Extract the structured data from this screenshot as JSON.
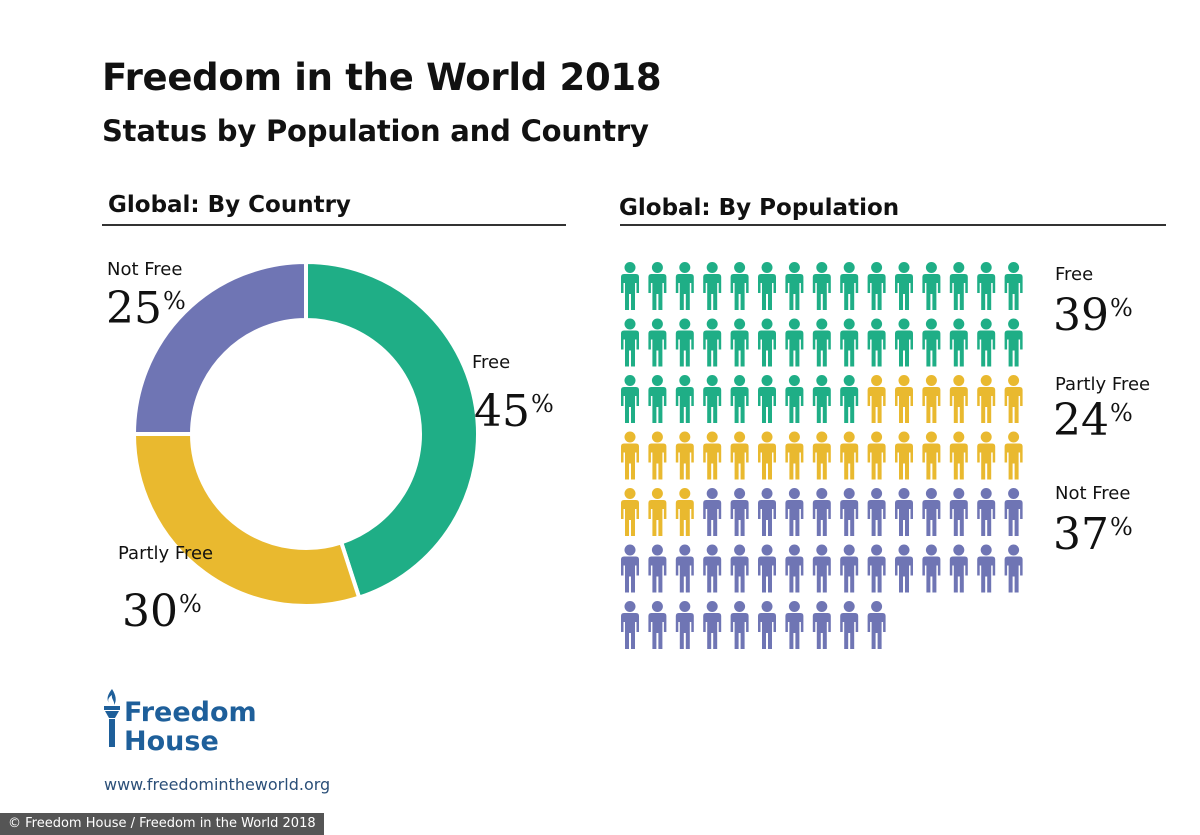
{
  "header": {
    "title": "Freedom in the World 2018",
    "subtitle": "Status by Population and Country"
  },
  "colors": {
    "free": "#1fae86",
    "partly_free": "#e9b92f",
    "not_free": "#6f75b4"
  },
  "chart_data": [
    {
      "type": "pie",
      "title": "Global: By Country",
      "categories": [
        "Free",
        "Partly Free",
        "Not Free"
      ],
      "values": [
        45,
        30,
        25
      ],
      "labels": {
        "free": {
          "name": "Free",
          "value": "45",
          "unit": "%"
        },
        "partly_free": {
          "name": "Partly Free",
          "value": "30",
          "unit": "%"
        },
        "not_free": {
          "name": "Not Free",
          "value": "25",
          "unit": "%"
        }
      }
    },
    {
      "type": "pictogram",
      "title": "Global: By Population",
      "categories": [
        "Free",
        "Partly Free",
        "Not Free"
      ],
      "values": [
        39,
        24,
        37
      ],
      "icon": "person-icon",
      "labels": {
        "free": {
          "name": "Free",
          "value": "39",
          "unit": "%"
        },
        "partly_free": {
          "name": "Partly Free",
          "value": "24",
          "unit": "%"
        },
        "not_free": {
          "name": "Not Free",
          "value": "37",
          "unit": "%"
        }
      }
    }
  ],
  "logo": {
    "icon": "torch-icon",
    "line1": "Freedom",
    "line2": "House"
  },
  "footer": {
    "url": "www.freedomintheworld.org",
    "credit": "© Freedom House / Freedom in the World 2018"
  }
}
